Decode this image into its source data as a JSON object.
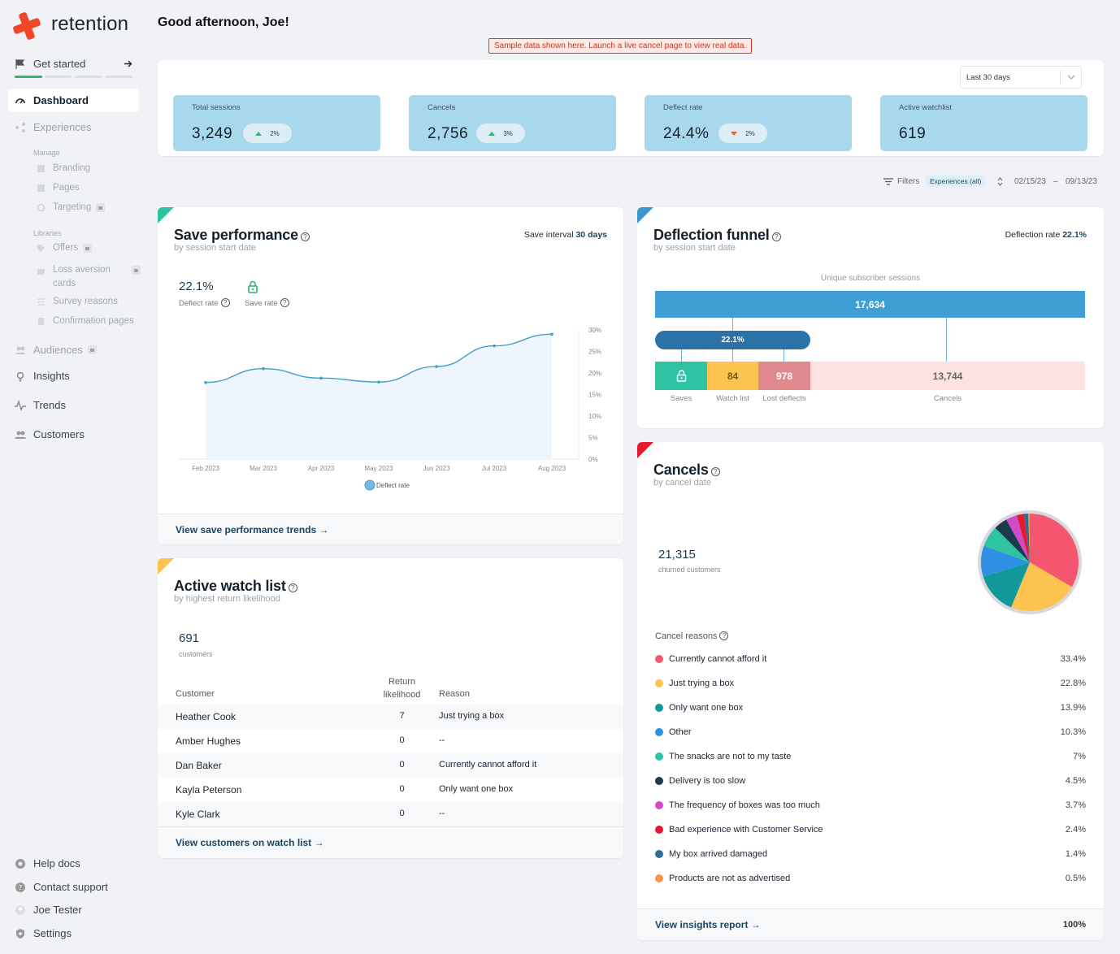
{
  "brand": {
    "name": "retention",
    "accent": "#f0472a"
  },
  "sidebar": {
    "get_started": "Get started",
    "dashboard": "Dashboard",
    "experiences": "Experiences",
    "manage_heading": "Manage",
    "branding": "Branding",
    "pages": "Pages",
    "targeting": "Targeting",
    "libraries_heading": "Libraries",
    "offers": "Offers",
    "loss_aversion_line1": "Loss aversion",
    "loss_aversion_line2": "cards",
    "survey_reasons": "Survey reasons",
    "confirmation_pages": "Confirmation pages",
    "audiences": "Audiences",
    "insights": "Insights",
    "trends": "Trends",
    "customers": "Customers",
    "help_docs": "Help docs",
    "contact_support": "Contact support",
    "user": "Joe Tester",
    "settings": "Settings"
  },
  "greeting": "Good afternoon, Joe!",
  "sample_banner": "Sample data shown here. Launch a live cancel page to view real data.",
  "date_range_select": "Last 30 days",
  "stats": [
    {
      "label": "Total sessions",
      "value": "3,249",
      "change": "2%",
      "direction": "up"
    },
    {
      "label": "Cancels",
      "value": "2,756",
      "change": "3%",
      "direction": "up"
    },
    {
      "label": "Deflect rate",
      "value": "24.4%",
      "change": "2%",
      "direction": "down"
    },
    {
      "label": "Active watchlist",
      "value": "619"
    }
  ],
  "filters": {
    "label": "Filters",
    "chip": "Experiences (all)",
    "start": "02/15/23",
    "sep": "–",
    "end": "09/13/23"
  },
  "save_performance": {
    "title": "Save performance",
    "subtitle": "by session start date",
    "interval_label": "Save interval",
    "interval_value": "30 days",
    "deflect_value": "22.1%",
    "deflect_label": "Deflect rate",
    "save_rate_label": "Save rate",
    "link": "View save performance trends →"
  },
  "chart_data": {
    "type": "area",
    "x": [
      "Feb 2023",
      "Mar 2023",
      "Apr 2023",
      "May 2023",
      "Jun 2023",
      "Jul 2023",
      "Aug 2023"
    ],
    "series": [
      {
        "name": "Deflect rate",
        "values": [
          17.8,
          21.0,
          18.8,
          17.9,
          21.5,
          26.3,
          29.0
        ]
      }
    ],
    "yticks": [
      "30%",
      "25%",
      "20%",
      "15%",
      "10%",
      "5%",
      "0%"
    ],
    "ylim": [
      0,
      30
    ],
    "color": "#3fa0cd",
    "legend": "bottom"
  },
  "funnel": {
    "title": "Deflection funnel",
    "subtitle": "by session start date",
    "rate_label": "Deflection rate",
    "rate_value": "22.1%",
    "header": "Unique subscriber sessions",
    "total": "17,634",
    "deflect_pct": "22.1%",
    "watch": "84",
    "lost": "978",
    "cancels": "13,744",
    "labels": {
      "saves": "Saves",
      "watch": "Watch list",
      "lost": "Lost deflects",
      "cancels": "Cancels"
    }
  },
  "watchlist": {
    "title": "Active watch list",
    "subtitle": "by highest return likelihood",
    "count": "691",
    "count_label": "customers",
    "col_customer": "Customer",
    "col_return_1": "Return",
    "col_return_2": "likelihood",
    "col_reason": "Reason",
    "rows": [
      {
        "name": "Heather Cook",
        "score": "7",
        "reason": "Just trying a box"
      },
      {
        "name": "Amber Hughes",
        "score": "0",
        "reason": "--"
      },
      {
        "name": "Dan Baker",
        "score": "0",
        "reason": "Currently cannot afford it"
      },
      {
        "name": "Kayla Peterson",
        "score": "0",
        "reason": "Only want one box"
      },
      {
        "name": "Kyle Clark",
        "score": "0",
        "reason": "--"
      }
    ],
    "link": "View customers on watch list →"
  },
  "cancels": {
    "title": "Cancels",
    "subtitle": "by cancel date",
    "count": "21,315",
    "count_label": "churned customers",
    "reasons_label": "Cancel reasons",
    "reasons": [
      {
        "label": "Currently cannot afford it",
        "pct": "33.4%",
        "value": 33.4,
        "color": "#f4566f"
      },
      {
        "label": "Just trying a box",
        "pct": "22.8%",
        "value": 22.8,
        "color": "#fcc44f"
      },
      {
        "label": "Only want one box",
        "pct": "13.9%",
        "value": 13.9,
        "color": "#11999a"
      },
      {
        "label": "Other",
        "pct": "10.3%",
        "value": 10.3,
        "color": "#2e8fe3"
      },
      {
        "label": "The snacks are not to my taste",
        "pct": "7%",
        "value": 7,
        "color": "#2ec4a3"
      },
      {
        "label": "Delivery is too slow",
        "pct": "4.5%",
        "value": 4.5,
        "color": "#1d3a4c"
      },
      {
        "label": "The frequency of boxes was too much",
        "pct": "3.7%",
        "value": 3.7,
        "color": "#d24ac8"
      },
      {
        "label": "Bad experience with Customer Service",
        "pct": "2.4%",
        "value": 2.4,
        "color": "#e8192f"
      },
      {
        "label": "My box arrived damaged",
        "pct": "1.4%",
        "value": 1.4,
        "color": "#2c6d95"
      },
      {
        "label": "Products are not as advertised",
        "pct": "0.5%",
        "value": 0.5,
        "color": "#f7934a"
      }
    ],
    "link": "View insights report →",
    "total": "100%"
  }
}
